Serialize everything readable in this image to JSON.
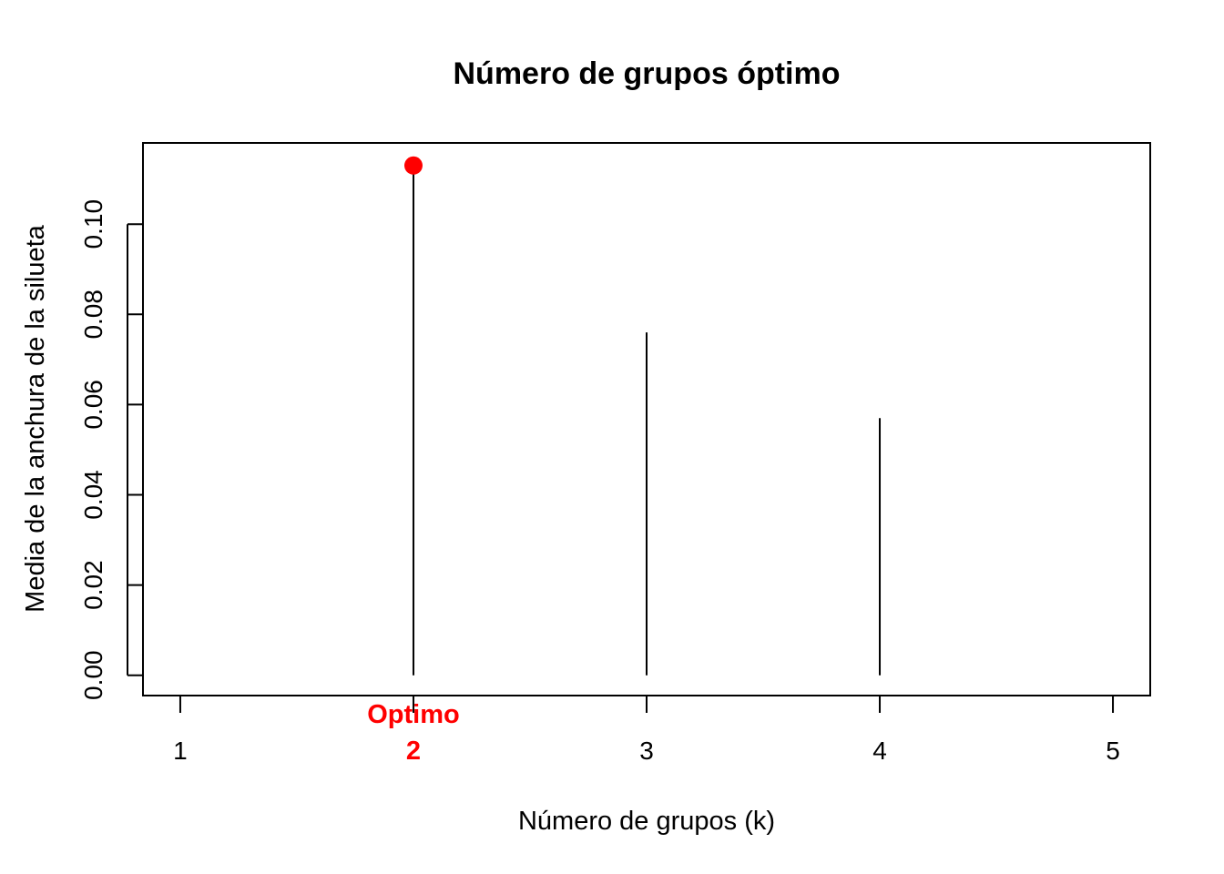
{
  "chart_data": {
    "type": "lollipop",
    "title": "Número de grupos óptimo",
    "xlabel": "Número de grupos (k)",
    "ylabel": "Media de la anchura de la silueta",
    "x": [
      1,
      2,
      3,
      4,
      5
    ],
    "x_tick_labels": [
      "1",
      "2",
      "3",
      "4",
      "5"
    ],
    "values": [
      0.0,
      0.113,
      0.076,
      0.057,
      0.0
    ],
    "xlim": [
      0.84,
      5.16
    ],
    "ylim": [
      -0.0045,
      0.118
    ],
    "y_ticks": [
      0.0,
      0.02,
      0.04,
      0.06,
      0.08,
      0.1
    ],
    "y_tick_labels": [
      "0.00",
      "0.02",
      "0.04",
      "0.06",
      "0.08",
      "0.10"
    ],
    "optimal": {
      "k": 2,
      "label": "Optimo",
      "value": 0.113
    },
    "highlight_color": "#ff0000",
    "line_color": "#000000",
    "grid": false,
    "legend": false
  }
}
